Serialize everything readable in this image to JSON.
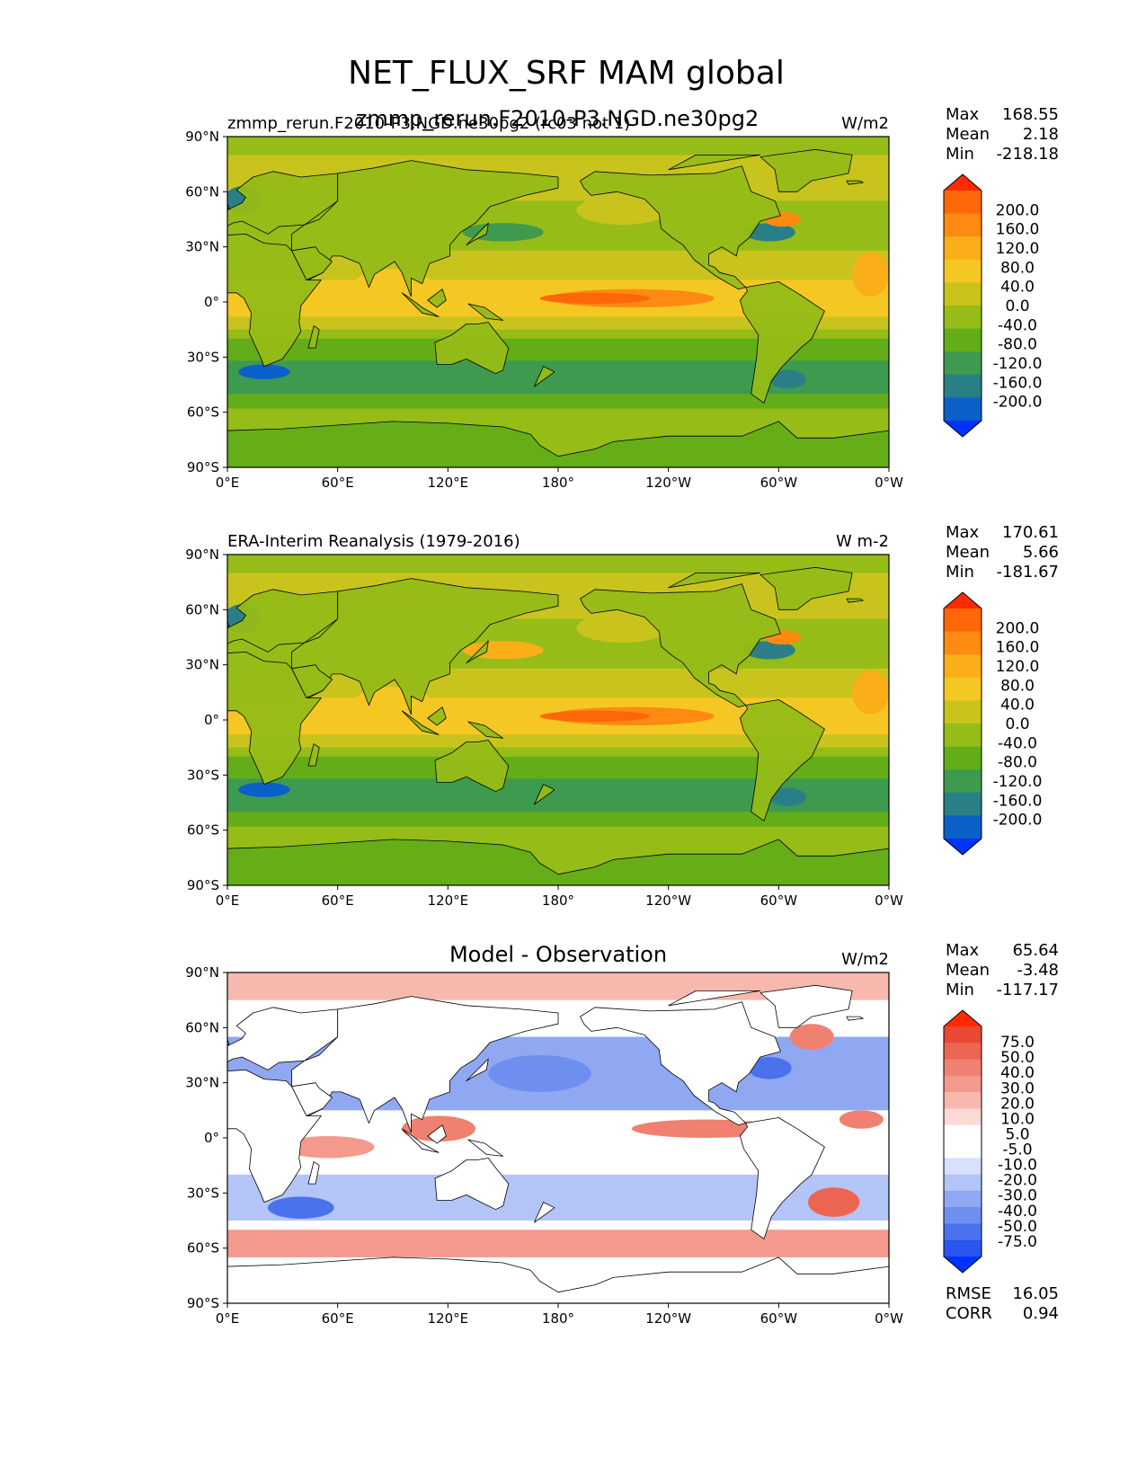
{
  "figure": {
    "suptitle": "NET_FLUX_SRF MAM global",
    "subtitle": "zmmp_rerun.F2010-P3.NGD.ne30pg2"
  },
  "axes": {
    "lat_ticks": [
      "90°N",
      "60°N",
      "30°N",
      "0°",
      "30°S",
      "60°S",
      "90°S"
    ],
    "lon_ticks": [
      "0°E",
      "60°E",
      "120°E",
      "180°",
      "120°W",
      "60°W",
      "0°W"
    ]
  },
  "colors": {
    "land_outline": "#000000",
    "main_cmap": [
      "#0033ff",
      "#0a60c8",
      "#2a7f86",
      "#3e9a4e",
      "#62ad18",
      "#95bc17",
      "#c8c41d",
      "#f5c723",
      "#faae18",
      "#fe8a12",
      "#fe6708",
      "#ff2a00"
    ],
    "diff_cmap": [
      "#0033ff",
      "#2b55f0",
      "#4b72ec",
      "#6f8ff0",
      "#90a8f2",
      "#b3c4f6",
      "#d8e0fb",
      "#ffffff",
      "#ffffff",
      "#fbd9d4",
      "#f7b8ad",
      "#f39a8c",
      "#f0806f",
      "#ec6552",
      "#e84834",
      "#ff2a00"
    ]
  },
  "chart_data": [
    {
      "type": "heatmap",
      "title": "",
      "left_label": "zmmp_rerun.F2010-P3.NGD.ne30pg2 (rc03 not 1)",
      "units": "W/m2",
      "stats": {
        "max_label": "Max",
        "max": "168.55",
        "mean_label": "Mean",
        "mean": "2.18",
        "min_label": "Min",
        "min": "-218.18"
      },
      "colorbar_levels": [
        "200.0",
        "160.0",
        "120.0",
        "80.0",
        "40.0",
        "0.0",
        "-40.0",
        "-80.0",
        "-120.0",
        "-160.0",
        "-200.0"
      ],
      "xlim": [
        0,
        360
      ],
      "ylim": [
        -90,
        90
      ]
    },
    {
      "type": "heatmap",
      "title": "",
      "left_label": "ERA-Interim Reanalysis (1979-2016)",
      "units": "W m-2",
      "stats": {
        "max_label": "Max",
        "max": "170.61",
        "mean_label": "Mean",
        "mean": "5.66",
        "min_label": "Min",
        "min": "-181.67"
      },
      "colorbar_levels": [
        "200.0",
        "160.0",
        "120.0",
        "80.0",
        "40.0",
        "0.0",
        "-40.0",
        "-80.0",
        "-120.0",
        "-160.0",
        "-200.0"
      ],
      "xlim": [
        0,
        360
      ],
      "ylim": [
        -90,
        90
      ]
    },
    {
      "type": "heatmap",
      "title": "Model - Observation",
      "left_label": "",
      "units": "W/m2",
      "stats": {
        "max_label": "Max",
        "max": "65.64",
        "mean_label": "Mean",
        "mean": "-3.48",
        "min_label": "Min",
        "min": "-117.17"
      },
      "colorbar_levels": [
        "75.0",
        "50.0",
        "40.0",
        "30.0",
        "20.0",
        "10.0",
        "5.0",
        "-5.0",
        "-10.0",
        "-20.0",
        "-30.0",
        "-40.0",
        "-50.0",
        "-75.0"
      ],
      "extra": {
        "rmse_label": "RMSE",
        "rmse": "16.05",
        "corr_label": "CORR",
        "corr": "0.94"
      },
      "xlim": [
        0,
        360
      ],
      "ylim": [
        -90,
        90
      ]
    }
  ]
}
